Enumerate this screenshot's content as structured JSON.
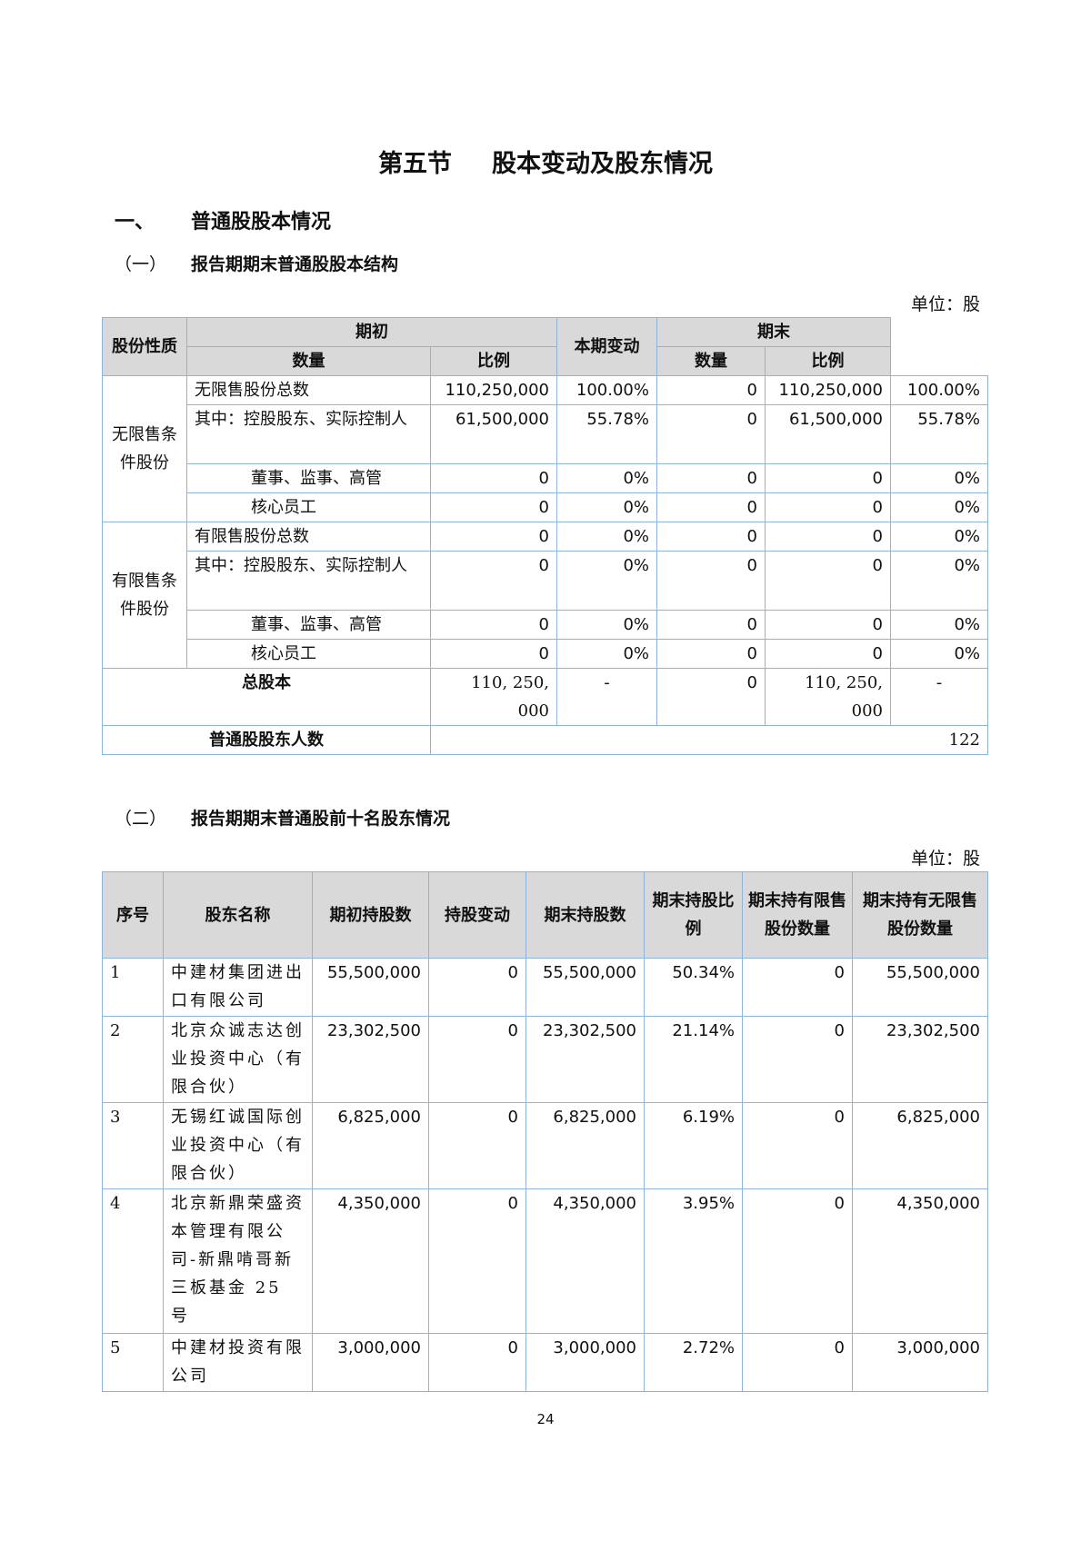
{
  "title": {
    "section": "第五节",
    "name": "股本变动及股东情况"
  },
  "heading1": {
    "num": "一、",
    "text": "普通股股本情况"
  },
  "sub1": {
    "num": "（一）",
    "text": "报告期期末普通股股本结构",
    "unit": "单位：股"
  },
  "table1": {
    "headers": {
      "nature": "股份性质",
      "begin": "期初",
      "change": "本期变动",
      "end": "期末",
      "qty": "数量",
      "ratio": "比例"
    },
    "group1": "无限售条件股份",
    "group2": "有限售条件股份",
    "rows": [
      {
        "label": "无限售股份总数",
        "bq": "110,250,000",
        "br": "100.00%",
        "ch": "0",
        "eq": "110,250,000",
        "er": "100.00%"
      },
      {
        "label": "其中：控股股东、实际控制人",
        "bq": "61,500,000",
        "br": "55.78%",
        "ch": "0",
        "eq": "61,500,000",
        "er": "55.78%"
      },
      {
        "label": "董事、监事、高管",
        "bq": "0",
        "br": "0%",
        "ch": "0",
        "eq": "0",
        "er": "0%"
      },
      {
        "label": "核心员工",
        "bq": "0",
        "br": "0%",
        "ch": "0",
        "eq": "0",
        "er": "0%"
      },
      {
        "label": "有限售股份总数",
        "bq": "0",
        "br": "0%",
        "ch": "0",
        "eq": "0",
        "er": "0%"
      },
      {
        "label": "其中：控股股东、实际控制人",
        "bq": "0",
        "br": "0%",
        "ch": "0",
        "eq": "0",
        "er": "0%"
      },
      {
        "label": "董事、监事、高管",
        "bq": "0",
        "br": "0%",
        "ch": "0",
        "eq": "0",
        "er": "0%"
      },
      {
        "label": "核心员工",
        "bq": "0",
        "br": "0%",
        "ch": "0",
        "eq": "0",
        "er": "0%"
      }
    ],
    "total": {
      "label": "总股本",
      "bq": "110, 250, 000",
      "br": "-",
      "ch": "0",
      "eq": "110, 250, 000",
      "er": "-"
    },
    "holders": {
      "label": "普通股股东人数",
      "value": "122"
    }
  },
  "sub2": {
    "num": "（二）",
    "text": "报告期期末普通股前十名股东情况",
    "unit": "单位：股"
  },
  "table2": {
    "headers": [
      "序号",
      "股东名称",
      "期初持股数",
      "持股变动",
      "期末持股数",
      "期末持股比例",
      "期末持有限售股份数量",
      "期末持有无限售股份数量"
    ],
    "rows": [
      {
        "no": "1",
        "name": "中建材集团进出口有限公司",
        "begin": "55,500,000",
        "change": "0",
        "end": "55,500,000",
        "ratio": "50.34%",
        "restricted": "0",
        "unrestricted": "55,500,000"
      },
      {
        "no": "2",
        "name": "北京众诚志达创业投资中心（有限合伙）",
        "begin": "23,302,500",
        "change": "0",
        "end": "23,302,500",
        "ratio": "21.14%",
        "restricted": "0",
        "unrestricted": "23,302,500"
      },
      {
        "no": "3",
        "name": "无锡红诚国际创业投资中心（有限合伙）",
        "begin": "6,825,000",
        "change": "0",
        "end": "6,825,000",
        "ratio": "6.19%",
        "restricted": "0",
        "unrestricted": "6,825,000"
      },
      {
        "no": "4",
        "name": "北京新鼎荣盛资本管理有限公司-新鼎啃哥新三板基金 25 号",
        "begin": "4,350,000",
        "change": "0",
        "end": "4,350,000",
        "ratio": "3.95%",
        "restricted": "0",
        "unrestricted": "4,350,000"
      },
      {
        "no": "5",
        "name": "中建材投资有限公司",
        "begin": "3,000,000",
        "change": "0",
        "end": "3,000,000",
        "ratio": "2.72%",
        "restricted": "0",
        "unrestricted": "3,000,000"
      }
    ]
  },
  "page_number": "24",
  "colors": {
    "border": "#8fb4dc",
    "header_bg": "#d9d9d9"
  }
}
